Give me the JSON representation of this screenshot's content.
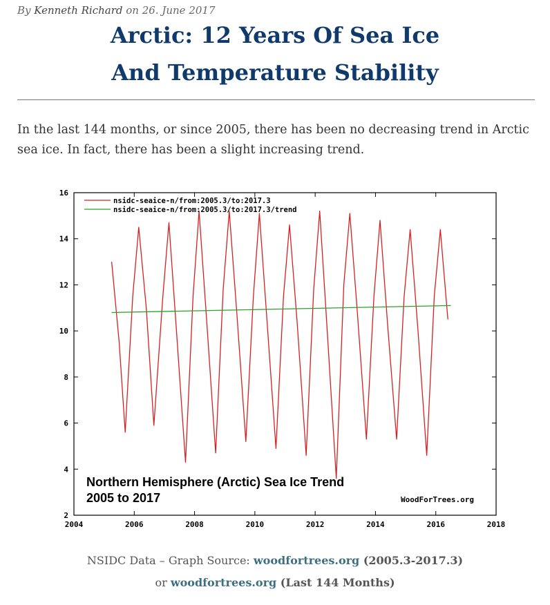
{
  "byline": {
    "prefix": "By",
    "author": "Kenneth Richard",
    "date_text": "on 26. June 2017"
  },
  "title": {
    "line1": "Arctic: 12 Years Of Sea Ice",
    "line2": "And Temperature Stability"
  },
  "intro": {
    "text": "In the last 144 months, or since 2005, there has been no decreasing trend in Arctic sea ice.  In fact, there has been a slight increasing trend."
  },
  "caption": {
    "part1": "NSIDC Data – Graph Source: ",
    "link1": "woodfortrees.org",
    "part2": " (2005.3-2017.3)",
    "part3": " or ",
    "link2": "woodfortrees.org",
    "part4": " (Last 144 Months)"
  },
  "chart_data": {
    "type": "line",
    "title": "Northern Hemisphere (Arctic) Sea Ice Trend",
    "subtitle": "2005 to 2017",
    "source_label": "WoodForTrees.org",
    "xlim": [
      2004,
      2018
    ],
    "ylim": [
      2,
      16
    ],
    "x_ticks": [
      "2004",
      "2006",
      "2008",
      "2010",
      "2012",
      "2014",
      "2016",
      "2018"
    ],
    "x_tick_values": [
      2004,
      2006,
      2008,
      2010,
      2012,
      2014,
      2016,
      2018
    ],
    "y_ticks": [
      "2",
      "4",
      "6",
      "8",
      "10",
      "12",
      "14",
      "16"
    ],
    "y_tick_values": [
      2,
      4,
      6,
      8,
      10,
      12,
      14,
      16
    ],
    "grid": false,
    "legend_position": "top-left",
    "series": [
      {
        "name": "nsidc-seaice-n/from:2005.3/to:2017.3",
        "color": "#d62020",
        "x": [
          2005.25,
          2005.5,
          2005.7,
          2005.95,
          2006.15,
          2006.4,
          2006.65,
          2006.95,
          2007.15,
          2007.4,
          2007.7,
          2007.95,
          2008.15,
          2008.4,
          2008.7,
          2008.95,
          2009.15,
          2009.4,
          2009.7,
          2009.95,
          2010.15,
          2010.4,
          2010.7,
          2010.95,
          2011.15,
          2011.4,
          2011.7,
          2011.95,
          2012.15,
          2012.4,
          2012.7,
          2012.95,
          2013.15,
          2013.4,
          2013.7,
          2013.95,
          2014.15,
          2014.4,
          2014.7,
          2014.95,
          2015.15,
          2015.4,
          2015.7,
          2015.95,
          2016.15,
          2016.4
        ],
        "values": [
          13.0,
          9.5,
          5.6,
          11.5,
          14.5,
          11.0,
          5.9,
          11.5,
          14.7,
          10.0,
          4.3,
          11.5,
          15.2,
          10.5,
          4.7,
          11.8,
          15.2,
          10.8,
          5.2,
          11.5,
          15.1,
          10.5,
          4.9,
          11.5,
          14.6,
          10.4,
          4.6,
          11.8,
          15.2,
          10.0,
          3.6,
          12.0,
          15.1,
          10.8,
          5.3,
          11.5,
          14.8,
          10.3,
          5.3,
          11.5,
          14.4,
          10.2,
          4.6,
          11.5,
          14.4,
          10.5
        ]
      },
      {
        "name": "nsidc-seaice-n/from:2005.3/to:2017.3/trend",
        "color": "#2aa12a",
        "x": [
          2005.25,
          2016.5
        ],
        "values": [
          10.8,
          11.1
        ]
      }
    ]
  }
}
